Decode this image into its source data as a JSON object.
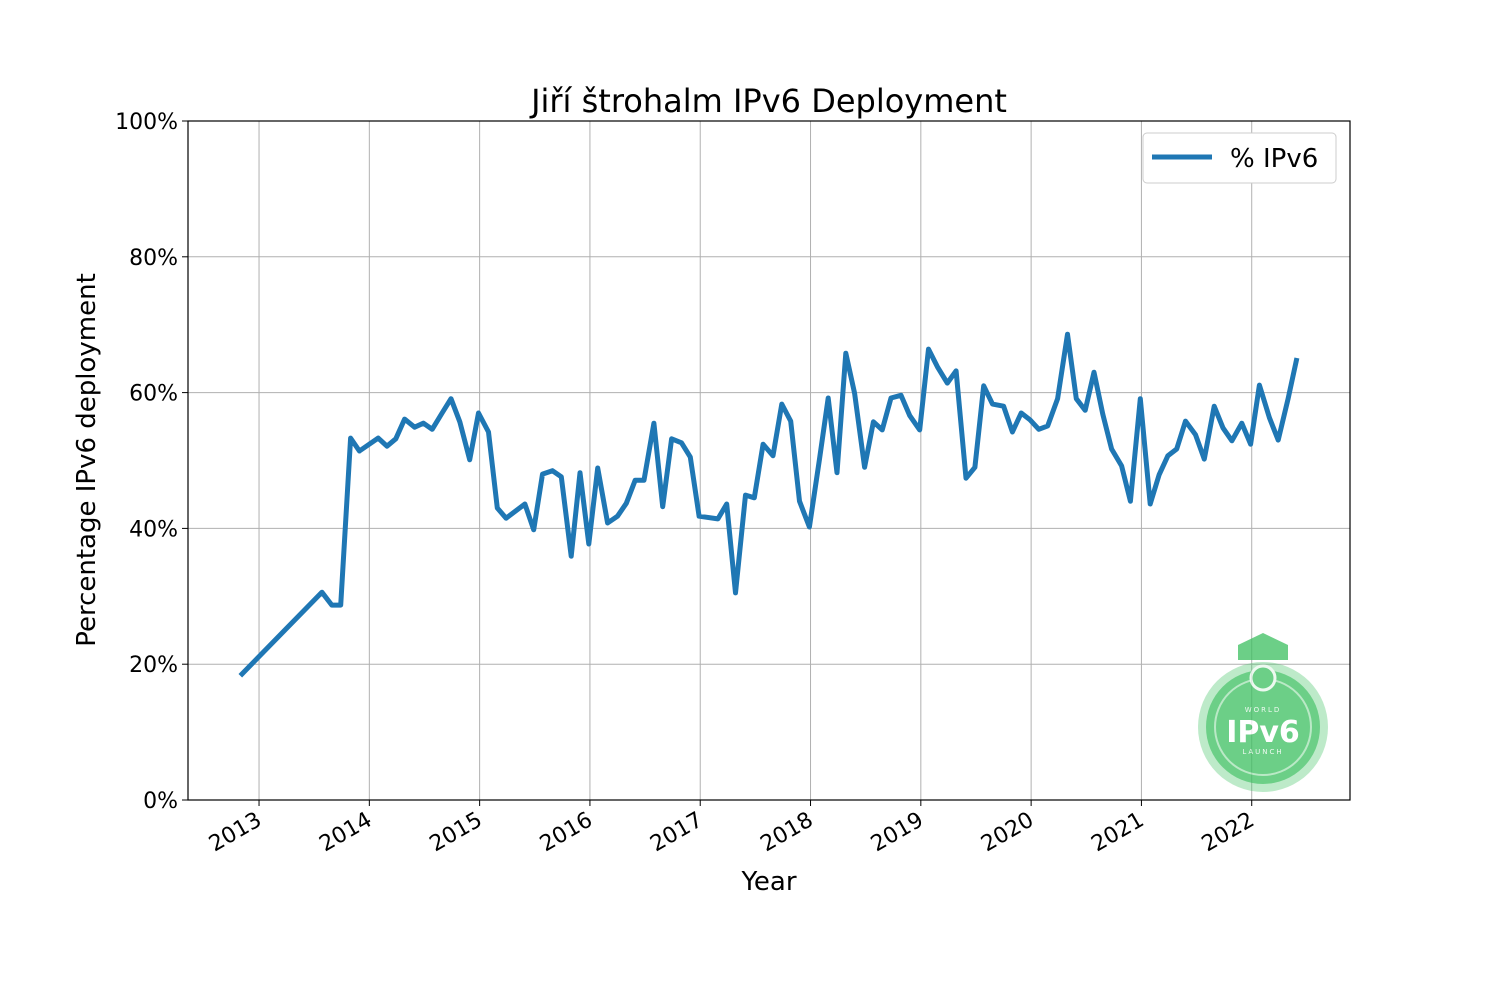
{
  "chart_data": {
    "type": "line",
    "title": "Jiří štrohalm IPv6 Deployment",
    "xlabel": "Year",
    "ylabel": "Percentage IPv6 deployment",
    "xlim": [
      2012.356,
      2022.891
    ],
    "ylim": [
      0,
      100
    ],
    "grid": true,
    "legend_position": "top-right",
    "x_ticks": [
      2013,
      2014,
      2015,
      2016,
      2017,
      2018,
      2019,
      2020,
      2021,
      2022
    ],
    "x_tick_labels": [
      "2013",
      "2014",
      "2015",
      "2016",
      "2017",
      "2018",
      "2019",
      "2020",
      "2021",
      "2022"
    ],
    "y_ticks": [
      0,
      20,
      40,
      60,
      80,
      100
    ],
    "y_tick_labels": [
      "0%",
      "20%",
      "40%",
      "60%",
      "80%",
      "100%"
    ],
    "series": [
      {
        "name": "% IPv6",
        "color": "#1f77b4",
        "x": [
          2012.83,
          2013.57,
          2013.66,
          2013.74,
          2013.83,
          2013.91,
          2014.08,
          2014.16,
          2014.24,
          2014.32,
          2014.41,
          2014.49,
          2014.57,
          2014.66,
          2014.74,
          2014.82,
          2014.91,
          2014.99,
          2015.08,
          2015.16,
          2015.24,
          2015.41,
          2015.49,
          2015.57,
          2015.66,
          2015.74,
          2015.83,
          2015.91,
          2015.99,
          2016.07,
          2016.16,
          2016.25,
          2016.33,
          2016.41,
          2016.49,
          2016.58,
          2016.66,
          2016.74,
          2016.83,
          2016.91,
          2016.99,
          2017.16,
          2017.24,
          2017.32,
          2017.41,
          2017.49,
          2017.57,
          2017.66,
          2017.74,
          2017.82,
          2017.9,
          2017.99,
          2018.08,
          2018.16,
          2018.24,
          2018.32,
          2018.4,
          2018.49,
          2018.57,
          2018.65,
          2018.73,
          2018.82,
          2018.9,
          2018.99,
          2019.07,
          2019.15,
          2019.24,
          2019.32,
          2019.41,
          2019.49,
          2019.57,
          2019.65,
          2019.75,
          2019.83,
          2019.91,
          2019.99,
          2020.07,
          2020.15,
          2020.24,
          2020.33,
          2020.41,
          2020.49,
          2020.57,
          2020.65,
          2020.73,
          2020.82,
          2020.9,
          2020.99,
          2021.08,
          2021.16,
          2021.24,
          2021.32,
          2021.4,
          2021.49,
          2021.57,
          2021.66,
          2021.74,
          2021.82,
          2021.91,
          2021.99,
          2022.07,
          2022.16,
          2022.24,
          2022.33,
          2022.41
        ],
        "values": [
          18.3,
          30.6,
          28.7,
          28.7,
          53.3,
          51.4,
          53.3,
          52.1,
          53.2,
          56.1,
          54.9,
          55.5,
          54.6,
          57.0,
          59.1,
          55.7,
          50.1,
          57.0,
          54.2,
          43.0,
          41.5,
          43.6,
          39.8,
          48.0,
          48.5,
          47.6,
          35.9,
          48.2,
          37.7,
          48.9,
          40.8,
          41.8,
          43.7,
          47.1,
          47.1,
          55.5,
          43.2,
          53.2,
          52.6,
          50.5,
          41.8,
          41.4,
          43.6,
          30.5,
          44.9,
          44.5,
          52.4,
          50.7,
          58.3,
          55.8,
          44.0,
          40.2,
          50.1,
          59.2,
          48.2,
          65.8,
          59.9,
          49.0,
          55.7,
          54.5,
          59.2,
          59.6,
          56.6,
          54.5,
          66.4,
          63.8,
          61.4,
          63.2,
          47.4,
          49.0,
          61.0,
          58.3,
          58.0,
          54.2,
          57.0,
          56.0,
          54.6,
          55.1,
          59.1,
          68.6,
          59.1,
          57.4,
          63.0,
          56.8,
          51.7,
          49.2,
          44.0,
          59.1,
          43.6,
          47.9,
          50.7,
          51.7,
          55.8,
          53.8,
          50.2,
          58.0,
          54.8,
          52.9,
          55.5,
          52.4,
          61.1,
          56.3,
          53.0,
          59.1,
          65.1
        ]
      }
    ]
  },
  "watermark": {
    "top": "WORLD",
    "main": "IPv6",
    "bottom": "LAUNCH",
    "color": "#3cc060"
  }
}
